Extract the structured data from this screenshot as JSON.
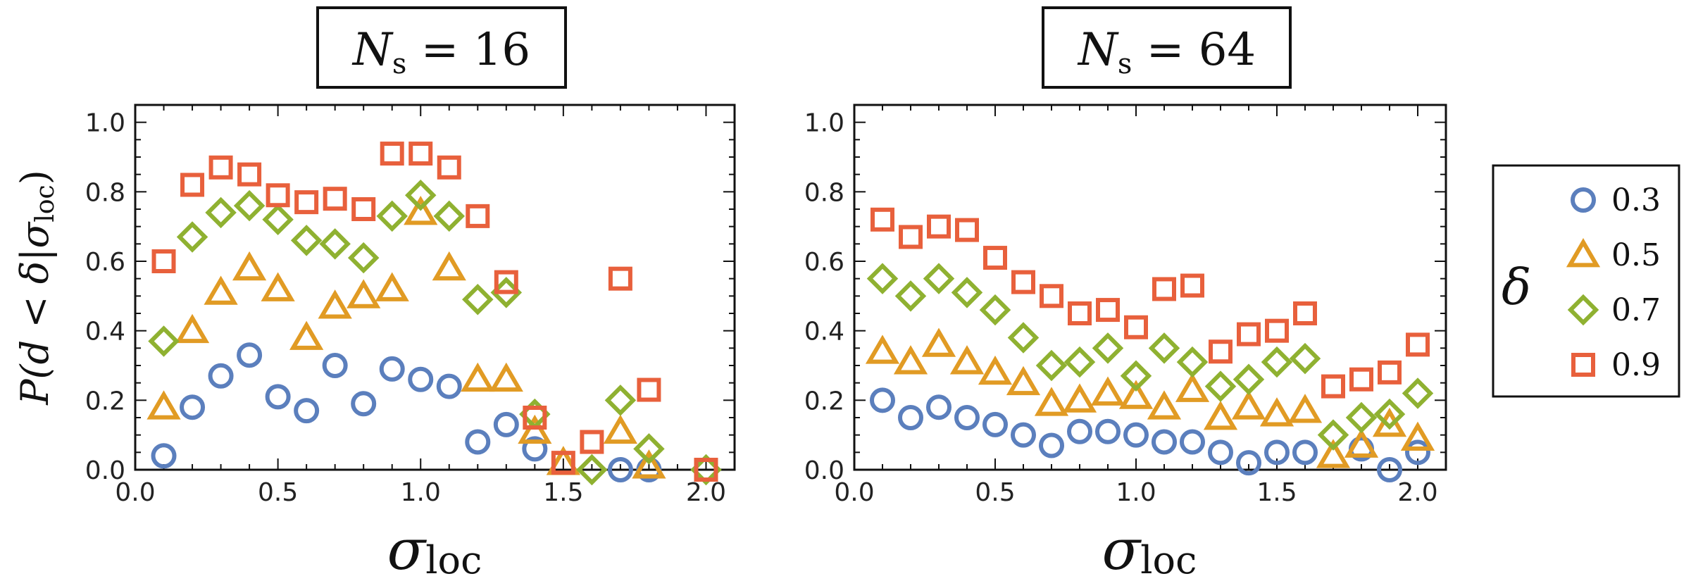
{
  "chart_data": [
    {
      "type": "scatter",
      "title": {
        "main": "N",
        "sub": "s",
        "rest": " = 16"
      },
      "xlabel": {
        "main": "σ",
        "sub": "loc"
      },
      "ylabel": {
        "lead": "P(d < δ|σ",
        "sub": "loc",
        "tail": ")"
      },
      "xlim": [
        0.0,
        2.1
      ],
      "ylim": [
        0.0,
        1.05
      ],
      "xticks": [
        "0.0",
        "0.5",
        "1.0",
        "1.5",
        "2.0"
      ],
      "yticks": [
        "0.0",
        "0.2",
        "0.4",
        "0.6",
        "0.8",
        "1.0"
      ],
      "series": [
        {
          "name": "0.3",
          "marker": "circle",
          "color": "#5b7fbd",
          "x": [
            0.1,
            0.2,
            0.3,
            0.4,
            0.5,
            0.6,
            0.7,
            0.8,
            0.9,
            1.0,
            1.1,
            1.2,
            1.3,
            1.4,
            1.7,
            1.8
          ],
          "y": [
            0.04,
            0.18,
            0.27,
            0.33,
            0.21,
            0.17,
            0.3,
            0.19,
            0.29,
            0.26,
            0.24,
            0.08,
            0.13,
            0.06,
            0.0,
            0.0
          ]
        },
        {
          "name": "0.5",
          "marker": "triangle",
          "color": "#e19b24",
          "x": [
            0.1,
            0.2,
            0.3,
            0.4,
            0.5,
            0.6,
            0.7,
            0.8,
            0.9,
            1.0,
            1.1,
            1.2,
            1.3,
            1.4,
            1.5,
            1.7,
            1.8
          ],
          "y": [
            0.18,
            0.4,
            0.51,
            0.58,
            0.52,
            0.38,
            0.47,
            0.5,
            0.52,
            0.74,
            0.58,
            0.26,
            0.26,
            0.11,
            0.02,
            0.11,
            0.01
          ]
        },
        {
          "name": "0.7",
          "marker": "diamond",
          "color": "#8fb131",
          "x": [
            0.1,
            0.2,
            0.3,
            0.4,
            0.5,
            0.6,
            0.7,
            0.8,
            0.9,
            1.0,
            1.1,
            1.2,
            1.3,
            1.4,
            1.6,
            1.7,
            1.8,
            2.0
          ],
          "y": [
            0.37,
            0.67,
            0.74,
            0.76,
            0.72,
            0.66,
            0.65,
            0.61,
            0.73,
            0.79,
            0.73,
            0.49,
            0.51,
            0.16,
            0.0,
            0.2,
            0.06,
            0.0
          ]
        },
        {
          "name": "0.9",
          "marker": "square",
          "color": "#e8603c",
          "x": [
            0.1,
            0.2,
            0.3,
            0.4,
            0.5,
            0.6,
            0.7,
            0.8,
            0.9,
            1.0,
            1.1,
            1.2,
            1.3,
            1.4,
            1.5,
            1.6,
            1.7,
            1.8,
            2.0
          ],
          "y": [
            0.6,
            0.82,
            0.87,
            0.85,
            0.79,
            0.77,
            0.78,
            0.75,
            0.91,
            0.91,
            0.87,
            0.73,
            0.54,
            0.15,
            0.02,
            0.08,
            0.55,
            0.23,
            0.0
          ]
        }
      ]
    },
    {
      "type": "scatter",
      "title": {
        "main": "N",
        "sub": "s",
        "rest": " = 64"
      },
      "xlabel": {
        "main": "σ",
        "sub": "loc"
      },
      "xlim": [
        0.0,
        2.1
      ],
      "ylim": [
        0.0,
        1.05
      ],
      "xticks": [
        "0.0",
        "0.5",
        "1.0",
        "1.5",
        "2.0"
      ],
      "yticks": [
        "0.0",
        "0.2",
        "0.4",
        "0.6",
        "0.8",
        "1.0"
      ],
      "series": [
        {
          "name": "0.3",
          "marker": "circle",
          "color": "#5b7fbd",
          "x": [
            0.1,
            0.2,
            0.3,
            0.4,
            0.5,
            0.6,
            0.7,
            0.8,
            0.9,
            1.0,
            1.1,
            1.2,
            1.3,
            1.4,
            1.5,
            1.6,
            1.8,
            1.9,
            2.0
          ],
          "y": [
            0.2,
            0.15,
            0.18,
            0.15,
            0.13,
            0.1,
            0.07,
            0.11,
            0.11,
            0.1,
            0.08,
            0.08,
            0.05,
            0.02,
            0.05,
            0.05,
            0.06,
            0.0,
            0.05
          ]
        },
        {
          "name": "0.5",
          "marker": "triangle",
          "color": "#e19b24",
          "x": [
            0.1,
            0.2,
            0.3,
            0.4,
            0.5,
            0.6,
            0.7,
            0.8,
            0.9,
            1.0,
            1.1,
            1.2,
            1.3,
            1.4,
            1.5,
            1.6,
            1.7,
            1.8,
            1.9,
            2.0
          ],
          "y": [
            0.34,
            0.31,
            0.36,
            0.31,
            0.28,
            0.25,
            0.19,
            0.2,
            0.22,
            0.21,
            0.18,
            0.23,
            0.15,
            0.18,
            0.16,
            0.17,
            0.04,
            0.07,
            0.13,
            0.09
          ]
        },
        {
          "name": "0.7",
          "marker": "diamond",
          "color": "#8fb131",
          "x": [
            0.1,
            0.2,
            0.3,
            0.4,
            0.5,
            0.6,
            0.7,
            0.8,
            0.9,
            1.0,
            1.1,
            1.2,
            1.3,
            1.4,
            1.5,
            1.6,
            1.7,
            1.8,
            1.9,
            2.0
          ],
          "y": [
            0.55,
            0.5,
            0.55,
            0.51,
            0.46,
            0.38,
            0.3,
            0.31,
            0.35,
            0.27,
            0.35,
            0.31,
            0.24,
            0.26,
            0.31,
            0.32,
            0.1,
            0.15,
            0.16,
            0.22
          ]
        },
        {
          "name": "0.9",
          "marker": "square",
          "color": "#e8603c",
          "x": [
            0.1,
            0.2,
            0.3,
            0.4,
            0.5,
            0.6,
            0.7,
            0.8,
            0.9,
            1.0,
            1.1,
            1.2,
            1.3,
            1.4,
            1.5,
            1.6,
            1.7,
            1.8,
            1.9,
            2.0
          ],
          "y": [
            0.72,
            0.67,
            0.7,
            0.69,
            0.61,
            0.54,
            0.5,
            0.45,
            0.46,
            0.41,
            0.52,
            0.53,
            0.34,
            0.39,
            0.4,
            0.45,
            0.24,
            0.26,
            0.28,
            0.36
          ]
        }
      ]
    }
  ],
  "legend": {
    "symbol": "δ",
    "entries": [
      "0.3",
      "0.5",
      "0.7",
      "0.9"
    ]
  }
}
